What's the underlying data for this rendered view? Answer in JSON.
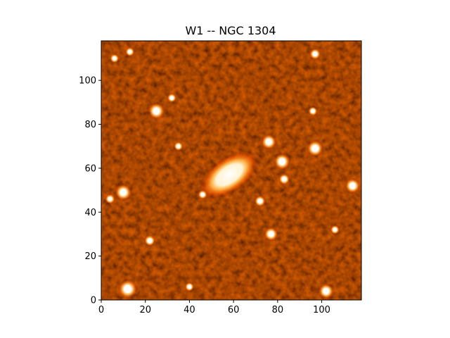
{
  "figure": {
    "title": "W1 -- NGC 1304",
    "colormap": "afmhot",
    "background_color": "#ffffff"
  },
  "image": {
    "description_hint": "astronomical image, dark red background with bright stars and central elongated galaxy",
    "palette": {
      "dark": "#0d0000",
      "mid": "#7a1200",
      "bright": "#ff6a00",
      "saturated": "#ffffff"
    }
  },
  "axes": {
    "xlim": [
      0,
      118
    ],
    "ylim": [
      0,
      118
    ],
    "xticks": [
      0,
      20,
      40,
      60,
      80,
      100
    ],
    "yticks": [
      0,
      20,
      40,
      60,
      80,
      100
    ],
    "xtick_labels": [
      "0",
      "20",
      "40",
      "60",
      "80",
      "100"
    ],
    "ytick_labels": [
      "0",
      "20",
      "40",
      "60",
      "80",
      "100"
    ]
  },
  "sources": {
    "galaxy": {
      "x": 58,
      "y": 57,
      "a": 9.5,
      "b": 5.0,
      "angle_deg": -35
    },
    "stars": [
      {
        "x": 25,
        "y": 86,
        "r": 2.6
      },
      {
        "x": 97,
        "y": 112,
        "r": 1.8
      },
      {
        "x": 10,
        "y": 49,
        "r": 2.6
      },
      {
        "x": 12,
        "y": 5,
        "r": 3.0
      },
      {
        "x": 102,
        "y": 4,
        "r": 2.4
      },
      {
        "x": 114,
        "y": 52,
        "r": 2.4
      },
      {
        "x": 97,
        "y": 69,
        "r": 2.6
      },
      {
        "x": 82,
        "y": 63,
        "r": 2.6
      },
      {
        "x": 76,
        "y": 72,
        "r": 2.4
      },
      {
        "x": 77,
        "y": 30,
        "r": 2.2
      },
      {
        "x": 72,
        "y": 45,
        "r": 1.8
      },
      {
        "x": 83,
        "y": 55,
        "r": 1.8
      },
      {
        "x": 22,
        "y": 27,
        "r": 1.8
      },
      {
        "x": 13,
        "y": 113,
        "r": 1.5
      },
      {
        "x": 6,
        "y": 110,
        "r": 1.5
      },
      {
        "x": 32,
        "y": 92,
        "r": 1.5
      },
      {
        "x": 96,
        "y": 86,
        "r": 1.5
      },
      {
        "x": 46,
        "y": 48,
        "r": 1.5
      },
      {
        "x": 40,
        "y": 6,
        "r": 1.5
      },
      {
        "x": 106,
        "y": 32,
        "r": 1.5
      },
      {
        "x": 35,
        "y": 70,
        "r": 1.5
      },
      {
        "x": 4,
        "y": 46,
        "r": 1.6
      }
    ]
  }
}
